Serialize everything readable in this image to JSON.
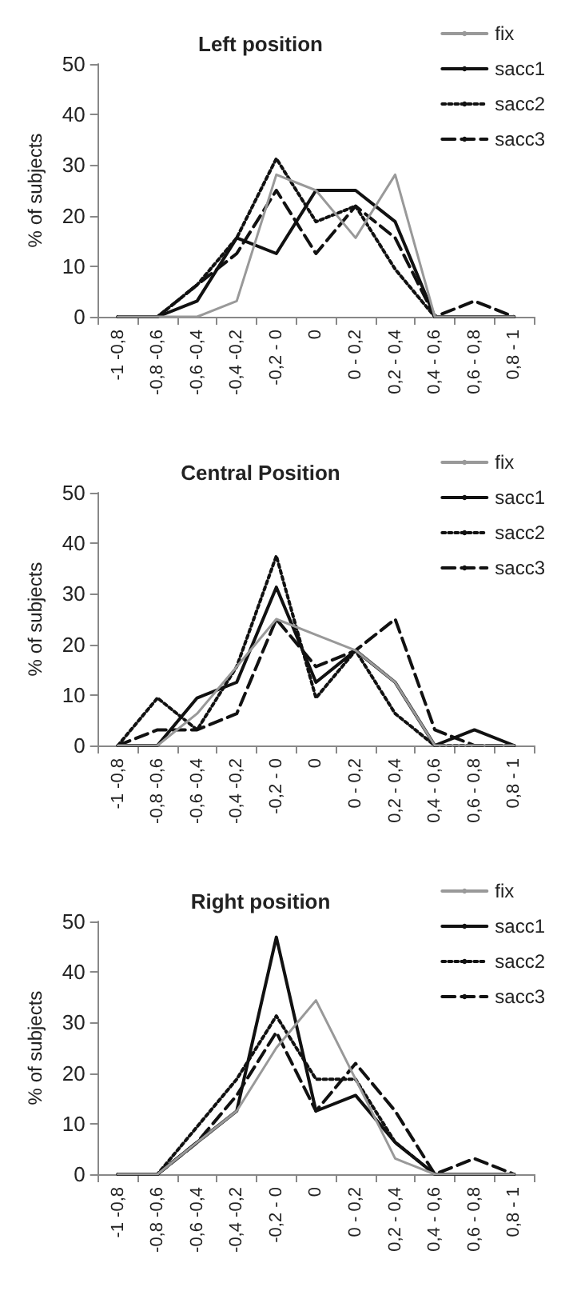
{
  "chart_data": [
    {
      "type": "line",
      "title": "Left position",
      "ylabel": "% of subjects",
      "categories": [
        "-1 -0,8",
        "-0,8 -0,6",
        "-0,6 -0,4",
        "-0,4 -0,2",
        "-0,2 - 0",
        "0",
        "0 - 0,2",
        "0,2 - 0,4",
        "0,4 - 0,6",
        "0,6 - 0,8",
        "0,8 - 1"
      ],
      "ylim": [
        0,
        50
      ],
      "yticks": [
        0,
        10,
        20,
        30,
        40,
        50
      ],
      "grid": false,
      "legend": "top right",
      "marker": "none",
      "series": [
        {
          "name": "fix",
          "color": "#999999",
          "line_style": "solid",
          "values": [
            0,
            0,
            0,
            3.1,
            28.1,
            25,
            15.6,
            28.1,
            0,
            0,
            0
          ]
        },
        {
          "name": "sacc1",
          "color": "#111111",
          "line_style": "solid",
          "values": [
            0,
            0,
            3.1,
            15.6,
            12.5,
            25,
            25,
            18.8,
            0,
            0,
            0
          ]
        },
        {
          "name": "sacc2",
          "color": "#111111",
          "line_style": "dotted",
          "values": [
            0,
            0,
            6.3,
            15.6,
            31.3,
            18.8,
            21.9,
            9.4,
            0,
            0,
            0
          ]
        },
        {
          "name": "sacc3",
          "color": "#111111",
          "line_style": "dashed",
          "values": [
            0,
            0,
            6.3,
            12.5,
            25,
            12.5,
            21.9,
            15.6,
            0,
            3.1,
            0
          ]
        }
      ]
    },
    {
      "type": "line",
      "title": "Central Position",
      "ylabel": "% of subjects",
      "categories": [
        "-1 -0,8",
        "-0,8 -0,6",
        "-0,6 -0,4",
        "-0,4 -0,2",
        "-0,2 - 0",
        "0",
        "0 - 0,2",
        "0,2 - 0,4",
        "0,4 - 0,6",
        "0,6 - 0,8",
        "0,8 - 1"
      ],
      "ylim": [
        0,
        50
      ],
      "yticks": [
        0,
        10,
        20,
        30,
        40,
        50
      ],
      "grid": false,
      "legend": "top right",
      "marker": "none",
      "series": [
        {
          "name": "fix",
          "color": "#999999",
          "line_style": "solid",
          "values": [
            0,
            0,
            6.3,
            15.6,
            25,
            21.9,
            18.8,
            12.5,
            0,
            0,
            0
          ]
        },
        {
          "name": "sacc1",
          "color": "#111111",
          "line_style": "solid",
          "values": [
            0,
            0,
            9.4,
            12.5,
            31.3,
            12.5,
            18.8,
            12.5,
            0,
            3.1,
            0
          ]
        },
        {
          "name": "sacc2",
          "color": "#111111",
          "line_style": "dotted",
          "values": [
            0,
            9.4,
            3.1,
            15.6,
            37.5,
            9.4,
            18.8,
            6.3,
            0,
            0,
            0
          ]
        },
        {
          "name": "sacc3",
          "color": "#111111",
          "line_style": "dashed",
          "values": [
            0,
            3.1,
            3.1,
            6.3,
            25,
            15.6,
            18.8,
            25,
            3.1,
            0,
            0
          ]
        }
      ]
    },
    {
      "type": "line",
      "title": "Right position",
      "ylabel": "% of subjects",
      "categories": [
        "-1 -0,8",
        "-0,8 -0,6",
        "-0,6 -0,4",
        "-0,4 -0,2",
        "-0,2 - 0",
        "0",
        "0 - 0,2",
        "0,2 - 0,4",
        "0,4 - 0,6",
        "0,6 - 0,8",
        "0,8 - 1"
      ],
      "ylim": [
        0,
        50
      ],
      "yticks": [
        0,
        10,
        20,
        30,
        40,
        50
      ],
      "grid": false,
      "legend": "top right",
      "marker": "none",
      "series": [
        {
          "name": "fix",
          "color": "#999999",
          "line_style": "solid",
          "values": [
            0,
            0,
            6.3,
            12.5,
            25,
            34.4,
            18.8,
            3.1,
            0,
            0,
            0
          ]
        },
        {
          "name": "sacc1",
          "color": "#111111",
          "line_style": "solid",
          "values": [
            0,
            0,
            6.3,
            12.5,
            46.9,
            12.5,
            15.6,
            6.3,
            0,
            0,
            0
          ]
        },
        {
          "name": "sacc2",
          "color": "#111111",
          "line_style": "dotted",
          "values": [
            0,
            0,
            9.4,
            18.8,
            31.3,
            18.8,
            18.8,
            6.3,
            0,
            0,
            0
          ]
        },
        {
          "name": "sacc3",
          "color": "#111111",
          "line_style": "dashed",
          "values": [
            0,
            0,
            6.3,
            15.6,
            28.1,
            12.5,
            21.9,
            12.5,
            0,
            3.1,
            0
          ]
        }
      ]
    }
  ]
}
